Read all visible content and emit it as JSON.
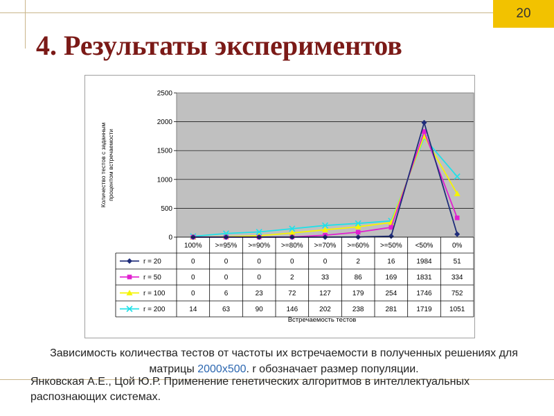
{
  "slide": {
    "number": "20",
    "title": "4. Результаты экспериментов"
  },
  "chart_data": {
    "type": "line",
    "title": "",
    "ylabel": "Количество тестов с заданным процентом встречаемости",
    "ylabel_lines": [
      "Количество тестов с заданным",
      "процентом встречаемости"
    ],
    "xlabel": "Встречаемость тестов",
    "categories": [
      "100%",
      ">=95%",
      ">=90%",
      ">=80%",
      ">=70%",
      ">=60%",
      ">=50%",
      "<50%",
      "0%"
    ],
    "ylim": [
      0,
      2500
    ],
    "yticks": [
      0,
      500,
      1000,
      1500,
      2000,
      2500
    ],
    "grid": true,
    "legend": "data-table",
    "series": [
      {
        "name": "r = 20",
        "color": "#1f2d7a",
        "marker": "diamond",
        "values": [
          0,
          0,
          0,
          0,
          0,
          2,
          16,
          1984,
          51
        ]
      },
      {
        "name": "r = 50",
        "color": "#e020d0",
        "marker": "square",
        "values": [
          0,
          0,
          0,
          2,
          33,
          86,
          169,
          1831,
          334
        ]
      },
      {
        "name": "r = 100",
        "color": "#f5f500",
        "marker": "triangle",
        "values": [
          0,
          6,
          23,
          72,
          127,
          179,
          254,
          1746,
          752
        ]
      },
      {
        "name": "r = 200",
        "color": "#20e0e8",
        "marker": "x",
        "values": [
          14,
          63,
          90,
          146,
          202,
          238,
          281,
          1719,
          1051
        ]
      }
    ]
  },
  "caption": {
    "part1": "Зависимость количества тестов от частоты их встречаемости в полученных решениях для матрицы ",
    "highlight": "2000x500",
    "part2": ". r обозначает размер популяции."
  },
  "citation": "Янковская А.Е., Цой Ю.Р. Применение генетических алгоритмов в интеллектуальных распознающих системах."
}
